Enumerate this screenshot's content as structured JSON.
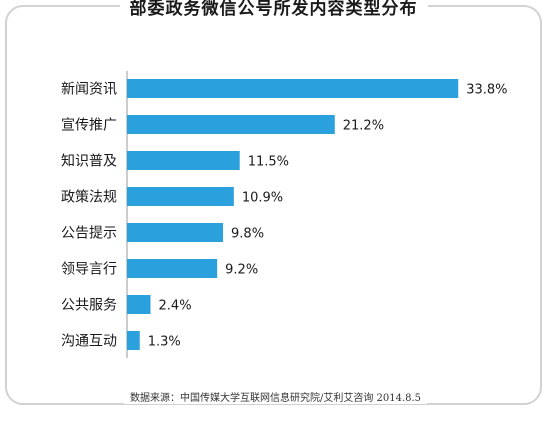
{
  "chart_data": {
    "type": "bar",
    "orientation": "horizontal",
    "title": "部委政务微信公号所发内容类型分布",
    "categories": [
      "新闻资讯",
      "宣传推广",
      "知识普及",
      "政策法规",
      "公告提示",
      "领导言行",
      "公共服务",
      "沟通互动"
    ],
    "values": [
      33.8,
      21.2,
      11.5,
      10.9,
      9.8,
      9.2,
      2.4,
      1.3
    ],
    "value_labels": [
      "33.8%",
      "21.2%",
      "11.5%",
      "10.9%",
      "9.8%",
      "9.2%",
      "2.4%",
      "1.3%"
    ],
    "unit": "%",
    "bar_color": "#2aa0dc",
    "grid": false,
    "legend": "none",
    "source": "数据来源：中国传媒大学互联网信息研究院/艾利艾咨询  2014.8.5"
  }
}
